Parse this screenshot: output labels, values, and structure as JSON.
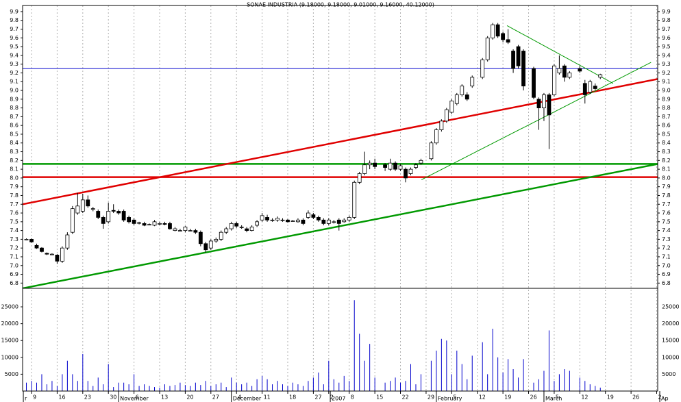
{
  "chart_data": {
    "type": "candlestick",
    "title": "SONAE INDUSTRIA (9.18000, 9.18000, 9.01000, 9.16000, 40.12000)",
    "x": [
      -1,
      0,
      1,
      2,
      3,
      4,
      5,
      6,
      7,
      8,
      9,
      10,
      11,
      12,
      13,
      14,
      15,
      16,
      17,
      18,
      19,
      20,
      21,
      22,
      23,
      24,
      25,
      26,
      27,
      28,
      29,
      30,
      31,
      32,
      33,
      34,
      35,
      36,
      37,
      38,
      39,
      40,
      41,
      42,
      43,
      44,
      45,
      46,
      47,
      48,
      49,
      50,
      51,
      52,
      53,
      54,
      55,
      56,
      57,
      58,
      59,
      60,
      61,
      62,
      63,
      64,
      65,
      66,
      67,
      69,
      70,
      71,
      72,
      73,
      74,
      75,
      76,
      78,
      79,
      80,
      81,
      82,
      83,
      84,
      85,
      86,
      88,
      89,
      90,
      91,
      92,
      93,
      94,
      95,
      96,
      98,
      99,
      100,
      101,
      102,
      103,
      104,
      105,
      107,
      108,
      109,
      110,
      111
    ],
    "open": [
      7.3,
      7.3,
      7.23,
      7.2,
      7.14,
      7.13,
      7.12,
      7.05,
      7.2,
      7.38,
      7.6,
      7.62,
      7.75,
      7.65,
      7.62,
      7.55,
      7.5,
      7.63,
      7.62,
      7.62,
      7.55,
      7.52,
      7.49,
      7.48,
      7.47,
      7.46,
      7.48,
      7.48,
      7.48,
      7.4,
      7.4,
      7.4,
      7.4,
      7.4,
      7.38,
      7.25,
      7.2,
      7.28,
      7.3,
      7.38,
      7.42,
      7.48,
      7.44,
      7.42,
      7.4,
      7.46,
      7.52,
      7.55,
      7.52,
      7.52,
      7.52,
      7.52,
      7.51,
      7.5,
      7.52,
      7.55,
      7.58,
      7.55,
      7.52,
      7.48,
      7.5,
      7.52,
      7.5,
      7.52,
      7.55,
      7.95,
      8.05,
      8.15,
      8.17,
      8.15,
      8.1,
      8.17,
      8.1,
      8.1,
      8.05,
      8.12,
      8.17,
      8.22,
      8.4,
      8.55,
      8.65,
      8.75,
      8.85,
      8.95,
      8.95,
      9.05,
      9.15,
      9.35,
      9.6,
      9.75,
      9.65,
      9.58,
      9.45,
      9.5,
      9.45,
      9.25,
      8.9,
      8.8,
      8.95,
      8.95,
      9.2,
      9.28,
      9.15,
      9.25,
      9.08,
      8.98,
      9.05,
      9.15
    ],
    "high": [
      7.31,
      7.31,
      7.25,
      7.21,
      7.15,
      7.14,
      7.13,
      7.22,
      7.38,
      7.68,
      7.83,
      7.82,
      7.8,
      7.67,
      7.64,
      7.57,
      7.72,
      7.7,
      7.64,
      7.64,
      7.57,
      7.54,
      7.5,
      7.5,
      7.48,
      7.52,
      7.5,
      7.5,
      7.5,
      7.44,
      7.42,
      7.45,
      7.42,
      7.42,
      7.4,
      7.27,
      7.3,
      7.32,
      7.4,
      7.44,
      7.5,
      7.5,
      7.46,
      7.44,
      7.46,
      7.52,
      7.6,
      7.58,
      7.54,
      7.56,
      7.54,
      7.53,
      7.52,
      7.54,
      7.54,
      7.63,
      7.6,
      7.57,
      7.54,
      7.54,
      7.52,
      7.54,
      7.54,
      7.57,
      7.97,
      8.07,
      8.3,
      8.2,
      8.22,
      8.17,
      8.22,
      8.19,
      8.16,
      8.12,
      8.12,
      8.17,
      8.22,
      8.42,
      8.57,
      8.67,
      8.8,
      8.9,
      8.97,
      9.07,
      8.98,
      9.17,
      9.37,
      9.62,
      9.77,
      9.77,
      9.67,
      9.7,
      9.47,
      9.52,
      9.47,
      9.27,
      8.92,
      8.97,
      8.97,
      9.3,
      9.4,
      9.3,
      9.22,
      9.28,
      9.12,
      9.12,
      9.08,
      9.19
    ],
    "low": [
      7.29,
      7.26,
      7.19,
      7.15,
      7.12,
      7.12,
      7.02,
      7.03,
      7.18,
      7.36,
      7.58,
      7.6,
      7.66,
      7.62,
      7.53,
      7.42,
      7.48,
      7.6,
      7.58,
      7.5,
      7.48,
      7.46,
      7.47,
      7.45,
      7.46,
      7.45,
      7.46,
      7.46,
      7.41,
      7.39,
      7.39,
      7.38,
      7.39,
      7.36,
      7.22,
      7.15,
      7.18,
      7.26,
      7.28,
      7.36,
      7.4,
      7.43,
      7.42,
      7.38,
      7.39,
      7.44,
      7.5,
      7.5,
      7.5,
      7.5,
      7.5,
      7.49,
      7.5,
      7.49,
      7.46,
      7.53,
      7.53,
      7.5,
      7.46,
      7.46,
      7.48,
      7.4,
      7.49,
      7.5,
      7.53,
      7.93,
      8.03,
      8.1,
      8.1,
      8.08,
      8.08,
      8.08,
      8.08,
      7.95,
      8.03,
      8.1,
      8.15,
      8.2,
      8.38,
      8.53,
      8.63,
      8.73,
      8.83,
      8.93,
      8.88,
      9.03,
      9.13,
      9.33,
      9.58,
      9.6,
      9.55,
      9.53,
      9.2,
      9.25,
      9.0,
      8.9,
      8.55,
      8.65,
      8.33,
      8.93,
      9.18,
      9.1,
      9.13,
      9.2,
      8.85,
      8.96,
      9.0,
      9.13
    ],
    "close": [
      7.3,
      7.27,
      7.2,
      7.16,
      7.13,
      7.13,
      7.05,
      7.2,
      7.35,
      7.65,
      7.68,
      7.75,
      7.68,
      7.65,
      7.55,
      7.48,
      7.62,
      7.62,
      7.6,
      7.52,
      7.5,
      7.48,
      7.49,
      7.46,
      7.47,
      7.5,
      7.48,
      7.47,
      7.42,
      7.42,
      7.4,
      7.44,
      7.4,
      7.38,
      7.25,
      7.18,
      7.28,
      7.3,
      7.38,
      7.42,
      7.48,
      7.45,
      7.44,
      7.4,
      7.44,
      7.5,
      7.57,
      7.52,
      7.52,
      7.54,
      7.52,
      7.5,
      7.51,
      7.52,
      7.48,
      7.6,
      7.55,
      7.52,
      7.48,
      7.52,
      7.5,
      7.48,
      7.52,
      7.55,
      7.95,
      8.05,
      8.15,
      8.17,
      8.13,
      8.12,
      8.17,
      8.1,
      8.14,
      8.0,
      8.1,
      8.15,
      8.2,
      8.4,
      8.55,
      8.65,
      8.78,
      8.88,
      8.95,
      9.05,
      8.9,
      9.15,
      9.35,
      9.6,
      9.75,
      9.62,
      9.58,
      9.55,
      9.25,
      9.28,
      9.05,
      8.92,
      8.8,
      8.95,
      8.72,
      9.28,
      9.25,
      9.15,
      9.2,
      9.22,
      8.95,
      9.1,
      9.02,
      9.18
    ],
    "volume": [
      2500,
      3000,
      2500,
      5000,
      2000,
      3000,
      1500,
      5000,
      9000,
      5000,
      3000,
      11000,
      3000,
      1500,
      4000,
      2000,
      8000,
      1200,
      2500,
      2500,
      2000,
      5000,
      1500,
      2000,
      1500,
      1200,
      1000,
      2000,
      1500,
      1800,
      2500,
      1800,
      1500,
      2500,
      1800,
      3000,
      1500,
      2000,
      2500,
      1200,
      4000,
      2500,
      2000,
      2500,
      1500,
      3500,
      4500,
      3500,
      2000,
      3000,
      2000,
      1500,
      2500,
      2000,
      1500,
      3000,
      4000,
      5500,
      2000,
      9000,
      3500,
      2500,
      4500,
      3000,
      27000,
      17000,
      9000,
      14000,
      4000,
      2500,
      3000,
      4000,
      2500,
      3000,
      8000,
      2000,
      5000,
      9000,
      12000,
      15500,
      15000,
      5000,
      12000,
      8000,
      3500,
      10500,
      14500,
      5000,
      18500,
      10000,
      5500,
      9500,
      6500,
      4000,
      9500,
      2500,
      3500,
      6000,
      18000,
      3000,
      5000,
      6500,
      6000,
      4000,
      3000,
      2000,
      1500,
      1000
    ],
    "up_color": "#ffffff",
    "down_color": "#000000",
    "volume_color": "#0000cc",
    "xlim": [
      -1.74,
      122.2
    ],
    "xticks": [
      {
        "value": 0,
        "label": "9"
      },
      {
        "value": 5,
        "label": "16"
      },
      {
        "value": 10,
        "label": "23"
      },
      {
        "value": 15,
        "label": "30"
      },
      {
        "value": 20,
        "label": "6"
      },
      {
        "value": 25,
        "label": "13"
      },
      {
        "value": 30,
        "label": "20"
      },
      {
        "value": 35,
        "label": "27"
      },
      {
        "value": 40,
        "label": "4"
      },
      {
        "value": 45,
        "label": "11"
      },
      {
        "value": 50,
        "label": "18"
      },
      {
        "value": 55,
        "label": "27"
      },
      {
        "value": 58,
        "label": "2"
      },
      {
        "value": 62,
        "label": "8"
      },
      {
        "value": 67,
        "label": "15"
      },
      {
        "value": 72,
        "label": "22"
      },
      {
        "value": 77,
        "label": "29"
      },
      {
        "value": 82,
        "label": "5"
      },
      {
        "value": 87,
        "label": "12"
      },
      {
        "value": 92,
        "label": "19"
      },
      {
        "value": 97,
        "label": "26"
      },
      {
        "value": 102,
        "label": "5"
      },
      {
        "value": 107,
        "label": "12"
      },
      {
        "value": 112,
        "label": "19"
      },
      {
        "value": 117,
        "label": "26"
      },
      {
        "value": 122,
        "label": "2"
      }
    ],
    "month_labels": [
      {
        "value": -1.6,
        "label": "r"
      },
      {
        "value": 17,
        "label": "November"
      },
      {
        "value": 39,
        "label": "December"
      },
      {
        "value": 58.3,
        "label": "2007"
      },
      {
        "value": 79,
        "label": "February"
      },
      {
        "value": 100,
        "label": "March"
      },
      {
        "value": 122.6,
        "label": "Ap"
      }
    ],
    "ylim": [
      6.74,
      9.97
    ],
    "yticks": [
      6.8,
      6.9,
      {
        "value": 7.0,
        "label": "7.0"
      },
      7.1,
      7.2,
      7.3,
      7.4,
      7.5,
      7.6,
      7.7,
      7.8,
      7.9,
      {
        "value": 8.0,
        "label": "8.0"
      },
      8.1,
      8.2,
      8.3,
      8.4,
      8.5,
      8.6,
      8.7,
      8.8,
      8.9,
      {
        "value": 9.0,
        "label": "9.0"
      },
      9.1,
      9.2,
      9.3,
      9.4,
      9.5,
      9.6,
      9.7,
      9.8,
      9.9
    ],
    "y2lim": [
      0,
      30500
    ],
    "y2ticks": [
      5000,
      10000,
      15000,
      20000,
      25000
    ],
    "grid": true,
    "trendlines": [
      {
        "color": "#0000cc",
        "weight": "thin",
        "x": [
          -1.74,
          122.2
        ],
        "y": [
          9.25,
          9.25
        ]
      },
      {
        "color": "#009900",
        "weight": "thick",
        "x": [
          -1.74,
          122.2
        ],
        "y": [
          8.16,
          8.16
        ]
      },
      {
        "color": "#e00000",
        "weight": "thick",
        "x": [
          -1.74,
          122.2
        ],
        "y": [
          8.01,
          8.01
        ]
      },
      {
        "color": "#e00000",
        "weight": "thick",
        "x": [
          -1.74,
          122.2
        ],
        "y": [
          7.7,
          9.13
        ]
      },
      {
        "color": "#009900",
        "weight": "thick",
        "x": [
          -1.74,
          122.2
        ],
        "y": [
          6.74,
          8.16
        ]
      },
      {
        "color": "#009900",
        "weight": "thin",
        "x": [
          76.1,
          120.9
        ],
        "y": [
          7.98,
          9.32
        ]
      },
      {
        "color": "#009900",
        "weight": "thin",
        "x": [
          92.8,
          113.5
        ],
        "y": [
          9.74,
          9.08
        ]
      }
    ]
  }
}
